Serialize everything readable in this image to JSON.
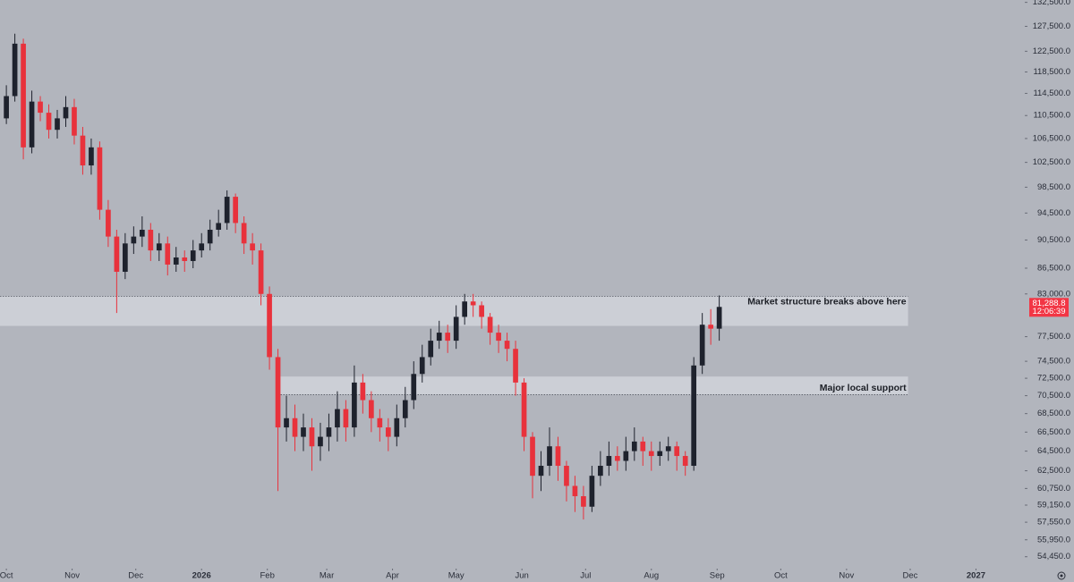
{
  "chart_data": {
    "type": "candlestick",
    "up_color": "#1e222d",
    "down_color": "#e8323c",
    "log_scale": true,
    "x": [
      0,
      4,
      8,
      12,
      16,
      20,
      24,
      28,
      32,
      36,
      40,
      44,
      48,
      52,
      56,
      60,
      64,
      68,
      72,
      76,
      80,
      84,
      88,
      92,
      96,
      100,
      104,
      108,
      112,
      116,
      120,
      124,
      128,
      132,
      136,
      140,
      144,
      148,
      152,
      156,
      160,
      164,
      168,
      172,
      176,
      180,
      184,
      188,
      192,
      196,
      200,
      204,
      208,
      212,
      216,
      220,
      224,
      228,
      232,
      236,
      240,
      244,
      248,
      252,
      256,
      260,
      264,
      268,
      272,
      276,
      280,
      284,
      288,
      292,
      296,
      300,
      304,
      308,
      312,
      316,
      320,
      324,
      328,
      332,
      336
    ],
    "open": [
      110000,
      114000,
      124000,
      105000,
      113000,
      111000,
      108000,
      110000,
      112000,
      107000,
      102000,
      105000,
      95000,
      91000,
      86000,
      90000,
      91000,
      92000,
      89000,
      90000,
      87000,
      88000,
      87500,
      89000,
      90000,
      92000,
      93000,
      97000,
      93000,
      90000,
      89000,
      83000,
      75000,
      67000,
      68000,
      66000,
      67000,
      65000,
      66000,
      67000,
      69000,
      67000,
      72000,
      70000,
      68000,
      67000,
      66000,
      68000,
      70000,
      73000,
      75000,
      77000,
      78000,
      77000,
      80000,
      82000,
      81500,
      80000,
      78000,
      77000,
      76000,
      72000,
      66000,
      62000,
      63000,
      65000,
      63000,
      61000,
      60000,
      59000,
      62000,
      63000,
      64000,
      63500,
      64500,
      65500,
      64500,
      64000,
      64500,
      65000,
      64000,
      63000,
      74000,
      79000,
      78500
    ],
    "high": [
      116000,
      126000,
      125000,
      115000,
      114000,
      112500,
      111500,
      114000,
      113500,
      108500,
      106500,
      106000,
      96500,
      92000,
      91500,
      92500,
      94000,
      93000,
      91500,
      91000,
      89500,
      89000,
      90500,
      91500,
      93500,
      95000,
      98000,
      97500,
      94000,
      91500,
      90000,
      84000,
      76000,
      70500,
      69500,
      68500,
      68000,
      67500,
      68500,
      71000,
      70000,
      74000,
      73000,
      71000,
      69000,
      68000,
      69500,
      71500,
      74500,
      76500,
      78500,
      79500,
      79000,
      81500,
      83000,
      83000,
      82000,
      80500,
      79000,
      78000,
      77000,
      72500,
      66500,
      64500,
      67000,
      66000,
      63500,
      62000,
      61000,
      63000,
      64500,
      65500,
      65000,
      66000,
      67000,
      66000,
      65500,
      65500,
      66000,
      65500,
      64500,
      75000,
      80500,
      81000,
      82800
    ],
    "low": [
      109000,
      113000,
      103000,
      104000,
      109500,
      106500,
      106500,
      108500,
      105500,
      100500,
      100500,
      93500,
      89500,
      80500,
      85000,
      88500,
      89500,
      87500,
      87500,
      85500,
      86000,
      86000,
      86500,
      88000,
      89000,
      91000,
      92000,
      91500,
      88500,
      87000,
      81500,
      73500,
      60500,
      65500,
      64500,
      64500,
      62500,
      63500,
      64500,
      65500,
      65500,
      66000,
      68500,
      66500,
      65500,
      64500,
      65000,
      67000,
      69000,
      72000,
      74000,
      76000,
      75500,
      76000,
      79000,
      80000,
      78500,
      76500,
      75500,
      74500,
      70500,
      64500,
      59800,
      60500,
      62000,
      61500,
      59500,
      58500,
      57800,
      58500,
      61000,
      62000,
      62500,
      62500,
      63500,
      63000,
      62500,
      63000,
      63500,
      62500,
      62000,
      62500,
      73000,
      76500,
      77000
    ],
    "close": [
      114000,
      124000,
      105000,
      113000,
      111000,
      108000,
      110000,
      112000,
      107000,
      102000,
      105000,
      95000,
      91000,
      86000,
      90000,
      91000,
      92000,
      89000,
      90000,
      87000,
      88000,
      87500,
      89000,
      90000,
      92000,
      93000,
      97000,
      93000,
      90000,
      89000,
      83000,
      75000,
      67000,
      68000,
      66000,
      67000,
      65000,
      66000,
      67000,
      69000,
      67000,
      72000,
      70000,
      68000,
      67000,
      66000,
      68000,
      70000,
      73000,
      75000,
      77000,
      78000,
      77000,
      80000,
      82000,
      81500,
      80000,
      78000,
      77000,
      76000,
      72000,
      66000,
      62000,
      63000,
      65000,
      63000,
      61000,
      60000,
      59000,
      62000,
      63000,
      64000,
      63500,
      64500,
      65500,
      64500,
      64000,
      64500,
      65000,
      64000,
      63000,
      74000,
      79000,
      78500,
      81288.8
    ],
    "xlim": [
      -3,
      480
    ],
    "xticks": [
      {
        "value": 0,
        "label": "Oct"
      },
      {
        "value": 31,
        "label": "Nov"
      },
      {
        "value": 61,
        "label": "Dec"
      },
      {
        "value": 92,
        "label": "2026"
      },
      {
        "value": 123,
        "label": "Feb"
      },
      {
        "value": 151,
        "label": "Mar"
      },
      {
        "value": 182,
        "label": "Apr"
      },
      {
        "value": 212,
        "label": "May"
      },
      {
        "value": 243,
        "label": "Jun"
      },
      {
        "value": 273,
        "label": "Jul"
      },
      {
        "value": 304,
        "label": "Aug"
      },
      {
        "value": 335,
        "label": "Sep"
      },
      {
        "value": 365,
        "label": "Oct"
      },
      {
        "value": 396,
        "label": "Nov"
      },
      {
        "value": 426,
        "label": "Dec"
      },
      {
        "value": 457,
        "label": "2027"
      }
    ],
    "bold_xticks": [
      "2026",
      "2027"
    ],
    "ylim": [
      53730,
      133000
    ],
    "yticks": [
      {
        "value": 132500,
        "label": "132,500.0"
      },
      {
        "value": 127500,
        "label": "127,500.0"
      },
      {
        "value": 122500,
        "label": "122,500.0"
      },
      {
        "value": 118500,
        "label": "118,500.0"
      },
      {
        "value": 114500,
        "label": "114,500.0"
      },
      {
        "value": 110500,
        "label": "110,500.0"
      },
      {
        "value": 106500,
        "label": "106,500.0"
      },
      {
        "value": 102500,
        "label": "102,500.0"
      },
      {
        "value": 98500,
        "label": "98,500.0"
      },
      {
        "value": 94500,
        "label": "94,500.0"
      },
      {
        "value": 90500,
        "label": "90,500.0"
      },
      {
        "value": 86500,
        "label": "86,500.0"
      },
      {
        "value": 83000,
        "label": "83,000.0"
      },
      {
        "value": 77500,
        "label": "77,500.0"
      },
      {
        "value": 74500,
        "label": "74,500.0"
      },
      {
        "value": 72500,
        "label": "72,500.0"
      },
      {
        "value": 70500,
        "label": "70,500.0"
      },
      {
        "value": 68500,
        "label": "68,500.0"
      },
      {
        "value": 66500,
        "label": "66,500.0"
      },
      {
        "value": 64500,
        "label": "64,500.0"
      },
      {
        "value": 62500,
        "label": "62,500.0"
      },
      {
        "value": 60750,
        "label": "60,750.0"
      },
      {
        "value": 59150,
        "label": "59,150.0"
      },
      {
        "value": 57550,
        "label": "57,550.0"
      },
      {
        "value": 55950,
        "label": "55,950.0"
      },
      {
        "value": 54450,
        "label": "54,450.0"
      }
    ],
    "last_price": {
      "value": 81288.8,
      "label": "81,288.8"
    },
    "countdown": "12:06:39",
    "zones": [
      {
        "text": "Market structure breaks above here",
        "low": 78850,
        "high": 82700,
        "x": [
          -3,
          425
        ],
        "dotted": "high"
      },
      {
        "text": "Major local support",
        "low": 70600,
        "high": 72700,
        "x": [
          128,
          425
        ],
        "dotted": "low"
      }
    ]
  }
}
